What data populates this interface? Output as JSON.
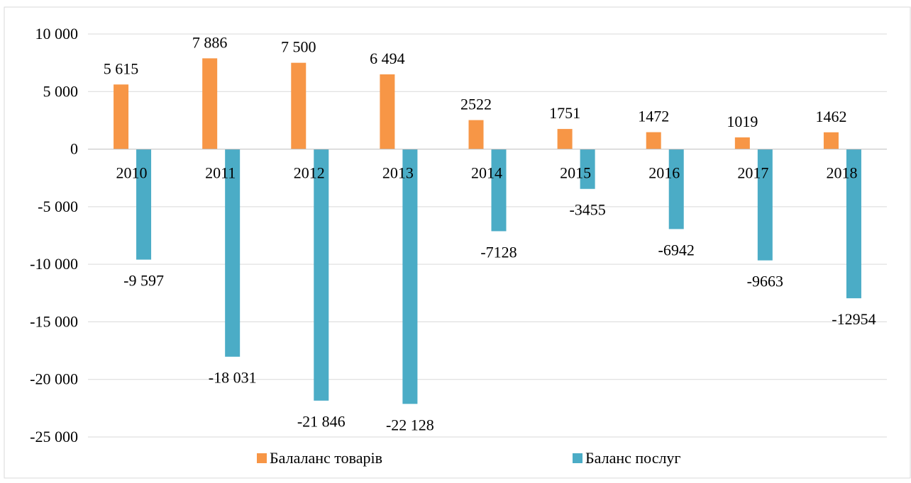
{
  "chart_data": {
    "type": "bar",
    "title": "",
    "xlabel": "",
    "ylabel": "",
    "categories": [
      "2010",
      "2011",
      "2012",
      "2013",
      "2014",
      "2015",
      "2016",
      "2017",
      "2018"
    ],
    "series": [
      {
        "name": "Балаланс товарів",
        "color": "#F79646",
        "values": [
          5615,
          7886,
          7500,
          6494,
          2522,
          1751,
          1472,
          1019,
          1462
        ],
        "labels": [
          "5 615",
          "7 886",
          "7 500",
          "6 494",
          "2522",
          "1751",
          "1472",
          "1019",
          "1462"
        ]
      },
      {
        "name": "Баланс послуг",
        "color": "#4BACC6",
        "values": [
          -9597,
          -18031,
          -21846,
          -22128,
          -7128,
          -3455,
          -6942,
          -9663,
          -12954
        ],
        "labels": [
          "-9 597",
          "-18 031",
          "-21 846",
          "-22 128",
          "-7128",
          "-3455",
          "-6942",
          "-9663",
          "-12954"
        ]
      }
    ],
    "ylim": [
      -25000,
      10000
    ],
    "yticks": [
      10000,
      5000,
      0,
      -5000,
      -10000,
      -15000,
      -20000,
      -25000
    ],
    "ytick_labels": [
      "10 000",
      "5 000",
      "0",
      "-5 000",
      "-10 000",
      "-15 000",
      "-20 000",
      "-25 000"
    ],
    "grid": true,
    "legend_position": "bottom"
  }
}
